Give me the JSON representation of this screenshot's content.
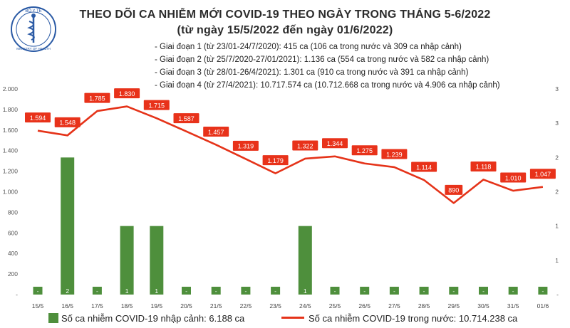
{
  "header": {
    "title": "THEO DÕI CA NHIỄM MỚI COVID-19 THEO NGÀY TRONG THÁNG 5-6/2022",
    "subtitle": "(từ ngày 15/5/2022 đến ngày 01/6/2022)",
    "notes": [
      "- Giai đoạn 1 (từ 23/01-24/7/2020): 415 ca (106 ca trong nước và 309 ca nhập cảnh)",
      "- Giai đoạn 2 (từ 25/7/2020-27/01/2021): 1.136 ca (554 ca trong nước và 582 ca nhập cảnh)",
      "- Giai đoạn 3 (từ 28/01-26/4/2021): 1.301 ca (910 ca trong nước và 391 ca nhập cảnh)",
      "- Giai đoạn 4 (từ 27/4/2021): 10.717.574 ca (10.712.668 ca trong nước và 4.906 ca nhập cảnh)"
    ]
  },
  "logo": {
    "top_text": "BỘ Y TẾ",
    "bottom_text": "MINISTRY OF HEALTH"
  },
  "legend": {
    "bar_label": "Số ca nhiễm COVID-19 nhập cảnh: 6.188 ca",
    "line_label": "Số ca nhiễm COVID-19 trong nước: 10.714.238 ca"
  },
  "chart_data": {
    "type": "bar+line",
    "categories": [
      "15/5",
      "16/5",
      "17/5",
      "18/5",
      "19/5",
      "20/5",
      "21/5",
      "22/5",
      "23/5",
      "24/5",
      "25/5",
      "26/5",
      "27/5",
      "28/5",
      "29/5",
      "30/5",
      "31/5",
      "01/6"
    ],
    "series": [
      {
        "name": "Số ca nhiễm COVID-19 nhập cảnh",
        "type": "bar",
        "axis": "right",
        "values": [
          0,
          2,
          0,
          1,
          1,
          0,
          0,
          0,
          0,
          1,
          0,
          0,
          0,
          0,
          0,
          0,
          0,
          0
        ],
        "labels": [
          "-",
          "2",
          "-",
          "1",
          "1",
          "-",
          "-",
          "-",
          "-",
          "1",
          "-",
          "-",
          "-",
          "-",
          "-",
          "-",
          "-",
          "-"
        ]
      },
      {
        "name": "Số ca nhiễm COVID-19 trong nước",
        "type": "line",
        "axis": "left",
        "values": [
          1594,
          1548,
          1785,
          1830,
          1715,
          1587,
          1457,
          1319,
          1179,
          1322,
          1344,
          1275,
          1239,
          1114,
          890,
          1118,
          1010,
          1047
        ],
        "labels": [
          "1.594",
          "1.548",
          "1.785",
          "1.830",
          "1.715",
          "1.587",
          "1.457",
          "1.319",
          "1.179",
          "1.322",
          "1.344",
          "1.275",
          "1.239",
          "1.114",
          "890",
          "1.118",
          "1.010",
          "1.047"
        ]
      }
    ],
    "y_left": {
      "range": [
        0,
        2000
      ],
      "ticks": [
        "-",
        "200",
        "400",
        "600",
        "800",
        "1.000",
        "1.200",
        "1.400",
        "1.600",
        "1.800",
        "2.000"
      ]
    },
    "y_right": {
      "range": [
        0,
        3
      ],
      "ticks": [
        "-",
        "1",
        "1",
        "2",
        "2",
        "3",
        "3"
      ]
    },
    "grid": false,
    "colors": {
      "bar": "#4e8f3c",
      "line": "#e53319",
      "label_bg": "#e8321a"
    }
  }
}
